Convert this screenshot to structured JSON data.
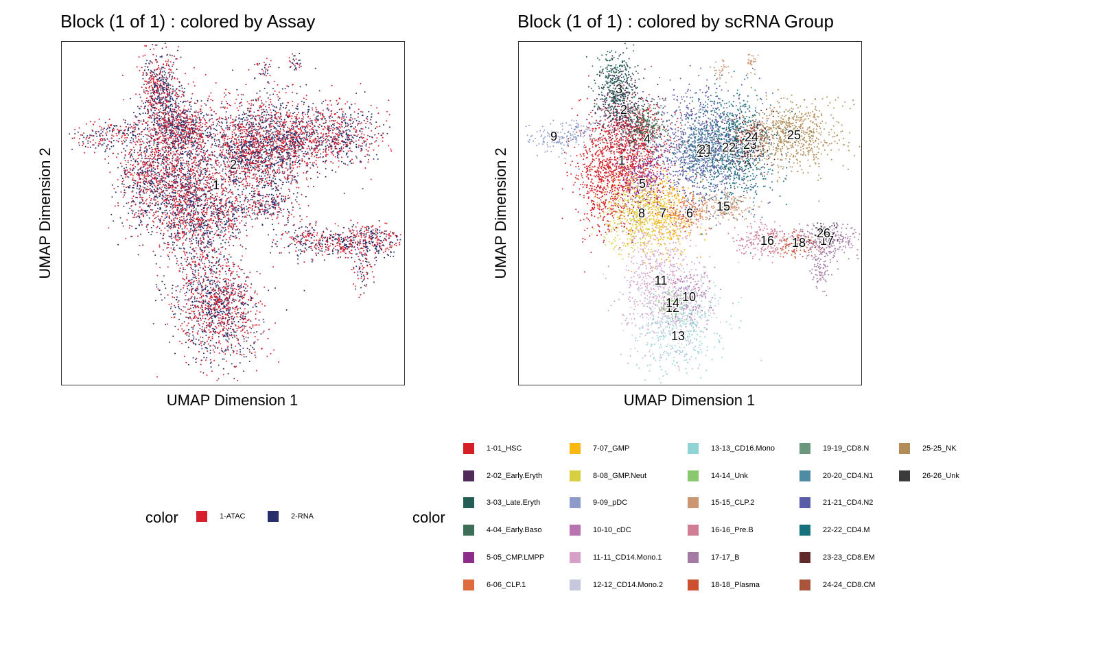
{
  "panels": [
    {
      "title": "Block (1 of 1) : colored by Assay",
      "xlabel": "UMAP Dimension 1",
      "ylabel": "UMAP Dimension 2"
    },
    {
      "title": "Block (1 of 1) : colored by scRNA Group",
      "xlabel": "UMAP Dimension 1",
      "ylabel": "UMAP Dimension 2"
    }
  ],
  "legend_assay": {
    "title": "color",
    "items": [
      {
        "label": "1-ATAC",
        "color": "#d62030"
      },
      {
        "label": "2-RNA",
        "color": "#272e6a"
      }
    ]
  },
  "legend_group": {
    "title": "color",
    "items": [
      {
        "label": "1-01_HSC",
        "color": "#d51f26"
      },
      {
        "label": "2-02_Early.Eryth",
        "color": "#502a59"
      },
      {
        "label": "3-03_Late.Eryth",
        "color": "#235d55"
      },
      {
        "label": "4-04_Early.Baso",
        "color": "#3d6e57"
      },
      {
        "label": "5-05_CMP.LMPP",
        "color": "#8d2b8b"
      },
      {
        "label": "6-06_CLP.1",
        "color": "#de6c3e"
      },
      {
        "label": "7-07_GMP",
        "color": "#f9b712"
      },
      {
        "label": "8-08_GMP.Neut",
        "color": "#d8ce42"
      },
      {
        "label": "9-09_pDC",
        "color": "#8e9aca"
      },
      {
        "label": "10-10_cDC",
        "color": "#b774b1"
      },
      {
        "label": "11-11_CD14.Mono.1",
        "color": "#d69fc8"
      },
      {
        "label": "12-12_CD14.Mono.2",
        "color": "#c7c8de"
      },
      {
        "label": "13-13_CD16.Mono",
        "color": "#8fd3d4"
      },
      {
        "label": "14-14_Unk",
        "color": "#89c86e"
      },
      {
        "label": "15-15_CLP.2",
        "color": "#cc9672"
      },
      {
        "label": "16-16_Pre.B",
        "color": "#cf7e96"
      },
      {
        "label": "17-17_B",
        "color": "#a27aa4"
      },
      {
        "label": "18-18_Plasma",
        "color": "#cd4f32"
      },
      {
        "label": "19-19_CD8.N",
        "color": "#6b977e"
      },
      {
        "label": "20-20_CD4.N1",
        "color": "#518aa3"
      },
      {
        "label": "21-21_CD4.N2",
        "color": "#5b5ca7"
      },
      {
        "label": "22-22_CD4.M",
        "color": "#17717d"
      },
      {
        "label": "23-23_CD8.EM",
        "color": "#612a2a"
      },
      {
        "label": "24-24_CD8.CM",
        "color": "#a8553b"
      },
      {
        "label": "25-25_NK",
        "color": "#b28d59"
      },
      {
        "label": "26-26_Unk",
        "color": "#3b3b3b"
      }
    ]
  },
  "chart_data": [
    {
      "type": "scatter",
      "title": "Block (1 of 1) : colored by Assay",
      "xlabel": "UMAP Dimension 1",
      "ylabel": "UMAP Dimension 2",
      "cluster_labels": [
        {
          "text": "1",
          "x": 225,
          "y": 210
        },
        {
          "text": "2",
          "x": 250,
          "y": 180
        }
      ],
      "series": [
        {
          "name": "1-ATAC",
          "color": "#d62030"
        },
        {
          "name": "2-RNA",
          "color": "#272e6a"
        }
      ]
    },
    {
      "type": "scatter",
      "title": "Block (1 of 1) : colored by scRNA Group",
      "xlabel": "UMAP Dimension 1",
      "ylabel": "UMAP Dimension 2",
      "cluster_labels": [
        {
          "text": "1",
          "x": 150,
          "y": 174,
          "color": "#d51f26"
        },
        {
          "text": "2",
          "x": 153,
          "y": 100,
          "color": "#502a59"
        },
        {
          "text": "3",
          "x": 146,
          "y": 70,
          "color": "#235d55"
        },
        {
          "text": "4",
          "x": 187,
          "y": 143,
          "color": "#3d6e57"
        },
        {
          "text": "5",
          "x": 180,
          "y": 208,
          "color": "#8d2b8b"
        },
        {
          "text": "6",
          "x": 249,
          "y": 251,
          "color": "#de6c3e"
        },
        {
          "text": "7",
          "x": 210,
          "y": 251,
          "color": "#f9b712"
        },
        {
          "text": "8",
          "x": 179,
          "y": 251,
          "color": "#d8ce42"
        },
        {
          "text": "9",
          "x": 51,
          "y": 139,
          "color": "#8e9aca"
        },
        {
          "text": "10",
          "x": 248,
          "y": 373,
          "color": "#b774b1"
        },
        {
          "text": "11",
          "x": 207,
          "y": 349,
          "color": "#d69fc8"
        },
        {
          "text": "12",
          "x": 224,
          "y": 389,
          "color": "#c7c8de"
        },
        {
          "text": "13",
          "x": 232,
          "y": 430,
          "color": "#8fd3d4"
        },
        {
          "text": "14",
          "x": 224,
          "y": 382,
          "color": "#89c86e"
        },
        {
          "text": "15",
          "x": 298,
          "y": 241,
          "color": "#cc9672"
        },
        {
          "text": "16",
          "x": 362,
          "y": 291,
          "color": "#cf7e96"
        },
        {
          "text": "17",
          "x": 449,
          "y": 291,
          "color": "#a27aa4"
        },
        {
          "text": "18",
          "x": 408,
          "y": 294,
          "color": "#cd4f32"
        },
        {
          "text": "19",
          "x": 269,
          "y": 163,
          "color": "#6b977e"
        },
        {
          "text": "20",
          "x": 269,
          "y": 157,
          "color": "#518aa3"
        },
        {
          "text": "21",
          "x": 272,
          "y": 158,
          "color": "#5b5ca7"
        },
        {
          "text": "22",
          "x": 306,
          "y": 155,
          "color": "#17717d"
        },
        {
          "text": "23",
          "x": 337,
          "y": 151,
          "color": "#612a2a"
        },
        {
          "text": "24",
          "x": 339,
          "y": 140,
          "color": "#a8553b"
        },
        {
          "text": "25",
          "x": 401,
          "y": 137,
          "color": "#b28d59"
        },
        {
          "text": "26",
          "x": 444,
          "y": 280,
          "color": "#3b3b3b"
        }
      ]
    }
  ]
}
